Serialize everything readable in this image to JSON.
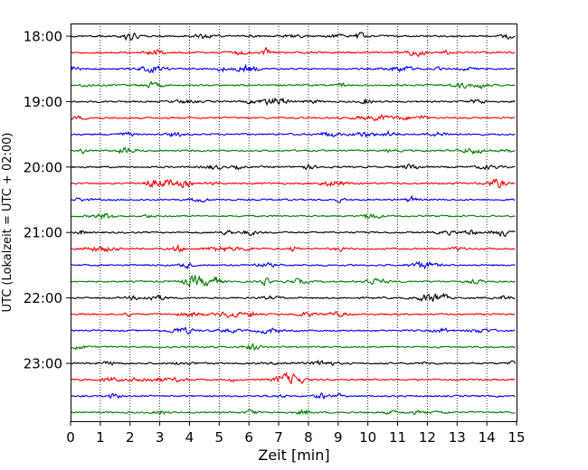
{
  "chart_data": {
    "type": "line",
    "subtype": "helicorder",
    "xlabel": "Zeit  [min]",
    "ylabel": "UTC (Lokalzeit = UTC + 02:00)",
    "xlim": [
      0,
      15
    ],
    "x_ticks": [
      "0",
      "1",
      "2",
      "3",
      "4",
      "5",
      "6",
      "7",
      "8",
      "9",
      "10",
      "11",
      "12",
      "13",
      "14",
      "15"
    ],
    "y_tick_labels": [
      "18:00",
      "19:00",
      "20:00",
      "21:00",
      "22:00",
      "23:00"
    ],
    "grid": "vertical dotted",
    "trace_colors": [
      "#000000",
      "#ff0000",
      "#0000ff",
      "#007f00"
    ],
    "trace_count": 24,
    "trace_interval_min": 15,
    "trace_start_times": [
      "18:00",
      "18:15",
      "18:30",
      "18:45",
      "19:00",
      "19:15",
      "19:30",
      "19:45",
      "20:00",
      "20:15",
      "20:30",
      "20:45",
      "21:00",
      "21:15",
      "21:30",
      "21:45",
      "22:00",
      "22:15",
      "22:30",
      "22:45",
      "23:00",
      "23:15",
      "23:30",
      "23:45"
    ]
  }
}
